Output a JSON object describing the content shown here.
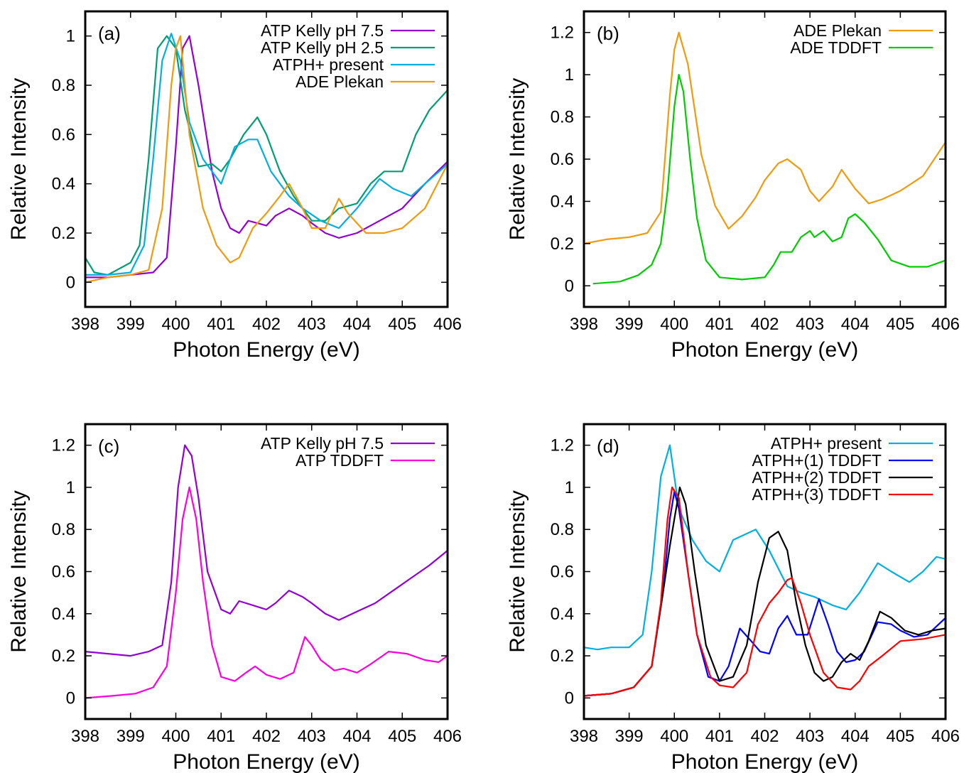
{
  "chart_data": [
    {
      "type": "line",
      "panel_label": "(a)",
      "xlabel": "Photon Energy (eV)",
      "ylabel": "Relative Intensity",
      "xlim": [
        398,
        406
      ],
      "ylim": [
        -0.1,
        1.1
      ],
      "xticks": [
        398,
        399,
        400,
        401,
        402,
        403,
        404,
        405,
        406
      ],
      "xtick_labels": [
        "398",
        "399",
        "400",
        "401",
        "402",
        "403",
        "404",
        "405",
        "406"
      ],
      "yticks": [
        0,
        0.2,
        0.4,
        0.6,
        0.8,
        1
      ],
      "ytick_labels": [
        "0",
        "0.2",
        "0.4",
        "0.6",
        "0.8",
        "1"
      ],
      "legend_position": "top-right",
      "grid": false,
      "series": [
        {
          "name": "ATP Kelly pH 7.5",
          "color": "#9400d3",
          "x": [
            398,
            398.5,
            399,
            399.5,
            399.8,
            400,
            400.15,
            400.3,
            400.5,
            400.8,
            401,
            401.2,
            401.4,
            401.6,
            401.8,
            402,
            402.2,
            402.5,
            402.8,
            403,
            403.3,
            403.6,
            404,
            404.5,
            405,
            405.5,
            406
          ],
          "y": [
            0.02,
            0.02,
            0.03,
            0.04,
            0.1,
            0.55,
            0.95,
            1.0,
            0.8,
            0.45,
            0.3,
            0.22,
            0.2,
            0.25,
            0.24,
            0.23,
            0.27,
            0.3,
            0.27,
            0.24,
            0.2,
            0.18,
            0.2,
            0.25,
            0.3,
            0.4,
            0.49
          ]
        },
        {
          "name": "ATP Kelly pH 2.5",
          "color": "#009e73",
          "x": [
            398,
            398.2,
            398.5,
            399,
            399.2,
            399.4,
            399.6,
            399.8,
            400,
            400.2,
            400.5,
            400.8,
            401,
            401.2,
            401.5,
            401.8,
            402,
            402.3,
            402.6,
            403,
            403.3,
            403.6,
            404,
            404.3,
            404.6,
            405,
            405.3,
            405.6,
            406
          ],
          "y": [
            0.1,
            0.04,
            0.03,
            0.08,
            0.15,
            0.5,
            0.95,
            1.0,
            0.95,
            0.7,
            0.47,
            0.48,
            0.45,
            0.5,
            0.6,
            0.67,
            0.6,
            0.45,
            0.35,
            0.25,
            0.25,
            0.3,
            0.32,
            0.4,
            0.45,
            0.45,
            0.6,
            0.7,
            0.78
          ]
        },
        {
          "name": "ATPH+ present",
          "color": "#00b0e0",
          "x": [
            398,
            398.5,
            399,
            399.3,
            399.5,
            399.7,
            399.9,
            400.1,
            400.3,
            400.6,
            401,
            401.3,
            401.6,
            401.8,
            402.1,
            402.5,
            402.8,
            403.2,
            403.6,
            404,
            404.5,
            404.8,
            405.2,
            405.5,
            406
          ],
          "y": [
            0.03,
            0.03,
            0.04,
            0.15,
            0.5,
            0.9,
            1.01,
            0.9,
            0.65,
            0.5,
            0.4,
            0.55,
            0.58,
            0.58,
            0.45,
            0.35,
            0.3,
            0.25,
            0.22,
            0.3,
            0.42,
            0.38,
            0.35,
            0.4,
            0.48
          ]
        },
        {
          "name": "ADE Plekan",
          "color": "#ef9b0f",
          "x": [
            398,
            398.5,
            399,
            399.4,
            399.7,
            399.9,
            400,
            400.1,
            400.3,
            400.6,
            400.9,
            401.2,
            401.4,
            401.7,
            402,
            402.3,
            402.5,
            402.8,
            403,
            403.3,
            403.6,
            403.8,
            404.2,
            404.6,
            405,
            405.5,
            406
          ],
          "y": [
            0.0,
            0.02,
            0.03,
            0.05,
            0.3,
            0.8,
            0.95,
            1.0,
            0.6,
            0.3,
            0.15,
            0.08,
            0.1,
            0.22,
            0.28,
            0.35,
            0.4,
            0.3,
            0.22,
            0.22,
            0.34,
            0.28,
            0.2,
            0.2,
            0.22,
            0.3,
            0.48
          ]
        }
      ]
    },
    {
      "type": "line",
      "panel_label": "(b)",
      "xlabel": "Photon Energy (eV)",
      "ylabel": "Relative Intensity",
      "xlim": [
        398,
        406
      ],
      "ylim": [
        -0.1,
        1.3
      ],
      "xticks": [
        398,
        399,
        400,
        401,
        402,
        403,
        404,
        405,
        406
      ],
      "xtick_labels": [
        "398",
        "399",
        "400",
        "401",
        "402",
        "403",
        "404",
        "405",
        "406"
      ],
      "yticks": [
        0,
        0.2,
        0.4,
        0.6,
        0.8,
        1,
        1.2
      ],
      "ytick_labels": [
        "0",
        "0.2",
        "0.4",
        "0.6",
        "0.8",
        "1",
        "1.2"
      ],
      "legend_position": "top-right",
      "grid": false,
      "series": [
        {
          "name": "ADE Plekan",
          "color": "#ef9b0f",
          "x": [
            398,
            398.5,
            399,
            399.4,
            399.7,
            399.9,
            400,
            400.1,
            400.3,
            400.6,
            400.9,
            401.2,
            401.5,
            401.8,
            402,
            402.3,
            402.5,
            402.8,
            403,
            403.2,
            403.5,
            403.7,
            404,
            404.3,
            404.6,
            405,
            405.5,
            406
          ],
          "y": [
            0.2,
            0.22,
            0.23,
            0.25,
            0.35,
            0.9,
            1.12,
            1.2,
            1.05,
            0.62,
            0.38,
            0.27,
            0.33,
            0.42,
            0.5,
            0.58,
            0.6,
            0.55,
            0.45,
            0.4,
            0.47,
            0.55,
            0.46,
            0.39,
            0.41,
            0.45,
            0.52,
            0.68
          ]
        },
        {
          "name": "ADE TDDFT",
          "color": "#00cc00",
          "x": [
            398.2,
            398.8,
            399.2,
            399.5,
            399.7,
            399.85,
            400,
            400.1,
            400.2,
            400.35,
            400.5,
            400.7,
            401,
            401.5,
            402,
            402.2,
            402.35,
            402.6,
            402.8,
            403,
            403.1,
            403.3,
            403.5,
            403.7,
            403.85,
            404,
            404.2,
            404.5,
            404.8,
            405.2,
            405.6,
            406
          ],
          "y": [
            0.01,
            0.02,
            0.05,
            0.1,
            0.2,
            0.45,
            0.85,
            1.0,
            0.92,
            0.6,
            0.32,
            0.12,
            0.04,
            0.03,
            0.04,
            0.1,
            0.16,
            0.16,
            0.23,
            0.26,
            0.23,
            0.26,
            0.21,
            0.23,
            0.32,
            0.34,
            0.3,
            0.22,
            0.12,
            0.09,
            0.09,
            0.12
          ]
        }
      ]
    },
    {
      "type": "line",
      "panel_label": "(c)",
      "xlabel": "Photon Energy (eV)",
      "ylabel": "Relative Intensity",
      "xlim": [
        398,
        406
      ],
      "ylim": [
        -0.1,
        1.3
      ],
      "xticks": [
        398,
        399,
        400,
        401,
        402,
        403,
        404,
        405,
        406
      ],
      "xtick_labels": [
        "398",
        "399",
        "400",
        "401",
        "402",
        "403",
        "404",
        "405",
        "406"
      ],
      "yticks": [
        0,
        0.2,
        0.4,
        0.6,
        0.8,
        1,
        1.2
      ],
      "ytick_labels": [
        "0",
        "0.2",
        "0.4",
        "0.6",
        "0.8",
        "1",
        "1.2"
      ],
      "legend_position": "top-right",
      "grid": false,
      "series": [
        {
          "name": "ATP Kelly pH 7.5",
          "color": "#9400d3",
          "x": [
            398,
            398.5,
            399,
            399.4,
            399.7,
            399.9,
            400.05,
            400.2,
            400.35,
            400.5,
            400.7,
            401,
            401.2,
            401.4,
            401.7,
            402,
            402.2,
            402.5,
            402.8,
            403,
            403.3,
            403.6,
            404,
            404.4,
            404.8,
            405.2,
            405.6,
            406
          ],
          "y": [
            0.22,
            0.21,
            0.2,
            0.22,
            0.25,
            0.55,
            1.0,
            1.2,
            1.15,
            0.95,
            0.6,
            0.42,
            0.4,
            0.46,
            0.44,
            0.42,
            0.45,
            0.51,
            0.48,
            0.45,
            0.4,
            0.37,
            0.41,
            0.45,
            0.51,
            0.57,
            0.63,
            0.7
          ]
        },
        {
          "name": "ATP TDDFT",
          "color": "#ff00dd",
          "x": [
            398,
            398.6,
            399.1,
            399.5,
            399.8,
            400,
            400.15,
            400.3,
            400.45,
            400.6,
            400.8,
            401,
            401.3,
            401.55,
            401.75,
            402,
            402.3,
            402.6,
            402.85,
            403,
            403.2,
            403.5,
            403.7,
            404,
            404.3,
            404.7,
            405.1,
            405.5,
            405.8,
            406
          ],
          "y": [
            0.0,
            0.01,
            0.02,
            0.05,
            0.15,
            0.5,
            0.85,
            1.0,
            0.85,
            0.55,
            0.25,
            0.1,
            0.08,
            0.12,
            0.15,
            0.11,
            0.09,
            0.12,
            0.29,
            0.25,
            0.18,
            0.13,
            0.14,
            0.12,
            0.16,
            0.22,
            0.21,
            0.18,
            0.17,
            0.2
          ]
        }
      ]
    },
    {
      "type": "line",
      "panel_label": "(d)",
      "xlabel": "Photon Energy (eV)",
      "ylabel": "Relative Intensity",
      "xlim": [
        398,
        406
      ],
      "ylim": [
        -0.1,
        1.3
      ],
      "xticks": [
        398,
        399,
        400,
        401,
        402,
        403,
        404,
        405,
        406
      ],
      "xtick_labels": [
        "398",
        "399",
        "400",
        "401",
        "402",
        "403",
        "404",
        "405",
        "406"
      ],
      "yticks": [
        0,
        0.2,
        0.4,
        0.6,
        0.8,
        1,
        1.2
      ],
      "ytick_labels": [
        "0",
        "0.2",
        "0.4",
        "0.6",
        "0.8",
        "1",
        "1.2"
      ],
      "legend_position": "top-right",
      "grid": false,
      "series": [
        {
          "name": "ATPH+ present",
          "color": "#00b0e0",
          "x": [
            398,
            398.3,
            398.6,
            399,
            399.3,
            399.5,
            399.7,
            399.9,
            400.1,
            400.4,
            400.7,
            401,
            401.3,
            401.6,
            401.8,
            402.1,
            402.5,
            402.8,
            403.1,
            403.5,
            403.8,
            404.1,
            404.5,
            404.8,
            405.2,
            405.5,
            405.8,
            406
          ],
          "y": [
            0.24,
            0.23,
            0.24,
            0.24,
            0.3,
            0.6,
            1.05,
            1.2,
            0.9,
            0.75,
            0.65,
            0.6,
            0.75,
            0.78,
            0.8,
            0.7,
            0.53,
            0.5,
            0.48,
            0.44,
            0.42,
            0.5,
            0.64,
            0.6,
            0.55,
            0.6,
            0.67,
            0.66
          ]
        },
        {
          "name": "ATPH+(1) TDDFT",
          "color": "#0000ff",
          "x": [
            398,
            398.6,
            399.1,
            399.5,
            399.75,
            399.9,
            400,
            400.1,
            400.3,
            400.5,
            400.75,
            401,
            401.2,
            401.45,
            401.7,
            401.9,
            402.1,
            402.3,
            402.5,
            402.7,
            402.95,
            403.2,
            403.4,
            403.6,
            403.8,
            404,
            404.2,
            404.5,
            404.8,
            405,
            405.3,
            405.6,
            406
          ],
          "y": [
            0.01,
            0.02,
            0.05,
            0.15,
            0.5,
            0.85,
            0.98,
            0.9,
            0.6,
            0.3,
            0.1,
            0.08,
            0.15,
            0.33,
            0.27,
            0.22,
            0.21,
            0.33,
            0.39,
            0.3,
            0.3,
            0.47,
            0.35,
            0.22,
            0.17,
            0.18,
            0.22,
            0.36,
            0.35,
            0.32,
            0.29,
            0.3,
            0.38
          ]
        },
        {
          "name": "ATPH+(2) TDDFT",
          "color": "#000000",
          "x": [
            398,
            398.6,
            399.1,
            399.5,
            399.75,
            399.9,
            400,
            400.12,
            400.25,
            400.45,
            400.7,
            401,
            401.3,
            401.6,
            401.85,
            402.1,
            402.3,
            402.5,
            402.7,
            402.9,
            403.1,
            403.3,
            403.5,
            403.7,
            403.9,
            404.1,
            404.3,
            404.55,
            404.8,
            405.1,
            405.4,
            405.7,
            406
          ],
          "y": [
            0.01,
            0.02,
            0.05,
            0.15,
            0.5,
            0.72,
            0.85,
            1.0,
            0.92,
            0.6,
            0.25,
            0.08,
            0.1,
            0.25,
            0.55,
            0.76,
            0.79,
            0.7,
            0.45,
            0.25,
            0.12,
            0.08,
            0.1,
            0.17,
            0.21,
            0.18,
            0.27,
            0.41,
            0.38,
            0.32,
            0.3,
            0.32,
            0.33
          ]
        },
        {
          "name": "ATPH+(3) TDDFT",
          "color": "#ff0000",
          "x": [
            398,
            398.6,
            399.1,
            399.5,
            399.7,
            399.85,
            399.95,
            400.1,
            400.3,
            400.5,
            400.8,
            401,
            401.3,
            401.6,
            401.85,
            402.1,
            402.3,
            402.5,
            402.6,
            402.8,
            403,
            403.3,
            403.6,
            403.9,
            404.1,
            404.3,
            404.6,
            405,
            405.5,
            406
          ],
          "y": [
            0.01,
            0.02,
            0.05,
            0.15,
            0.45,
            0.85,
            1.0,
            0.95,
            0.6,
            0.3,
            0.1,
            0.06,
            0.05,
            0.12,
            0.35,
            0.45,
            0.5,
            0.56,
            0.57,
            0.45,
            0.3,
            0.12,
            0.05,
            0.04,
            0.08,
            0.15,
            0.2,
            0.27,
            0.28,
            0.3
          ]
        }
      ]
    }
  ]
}
